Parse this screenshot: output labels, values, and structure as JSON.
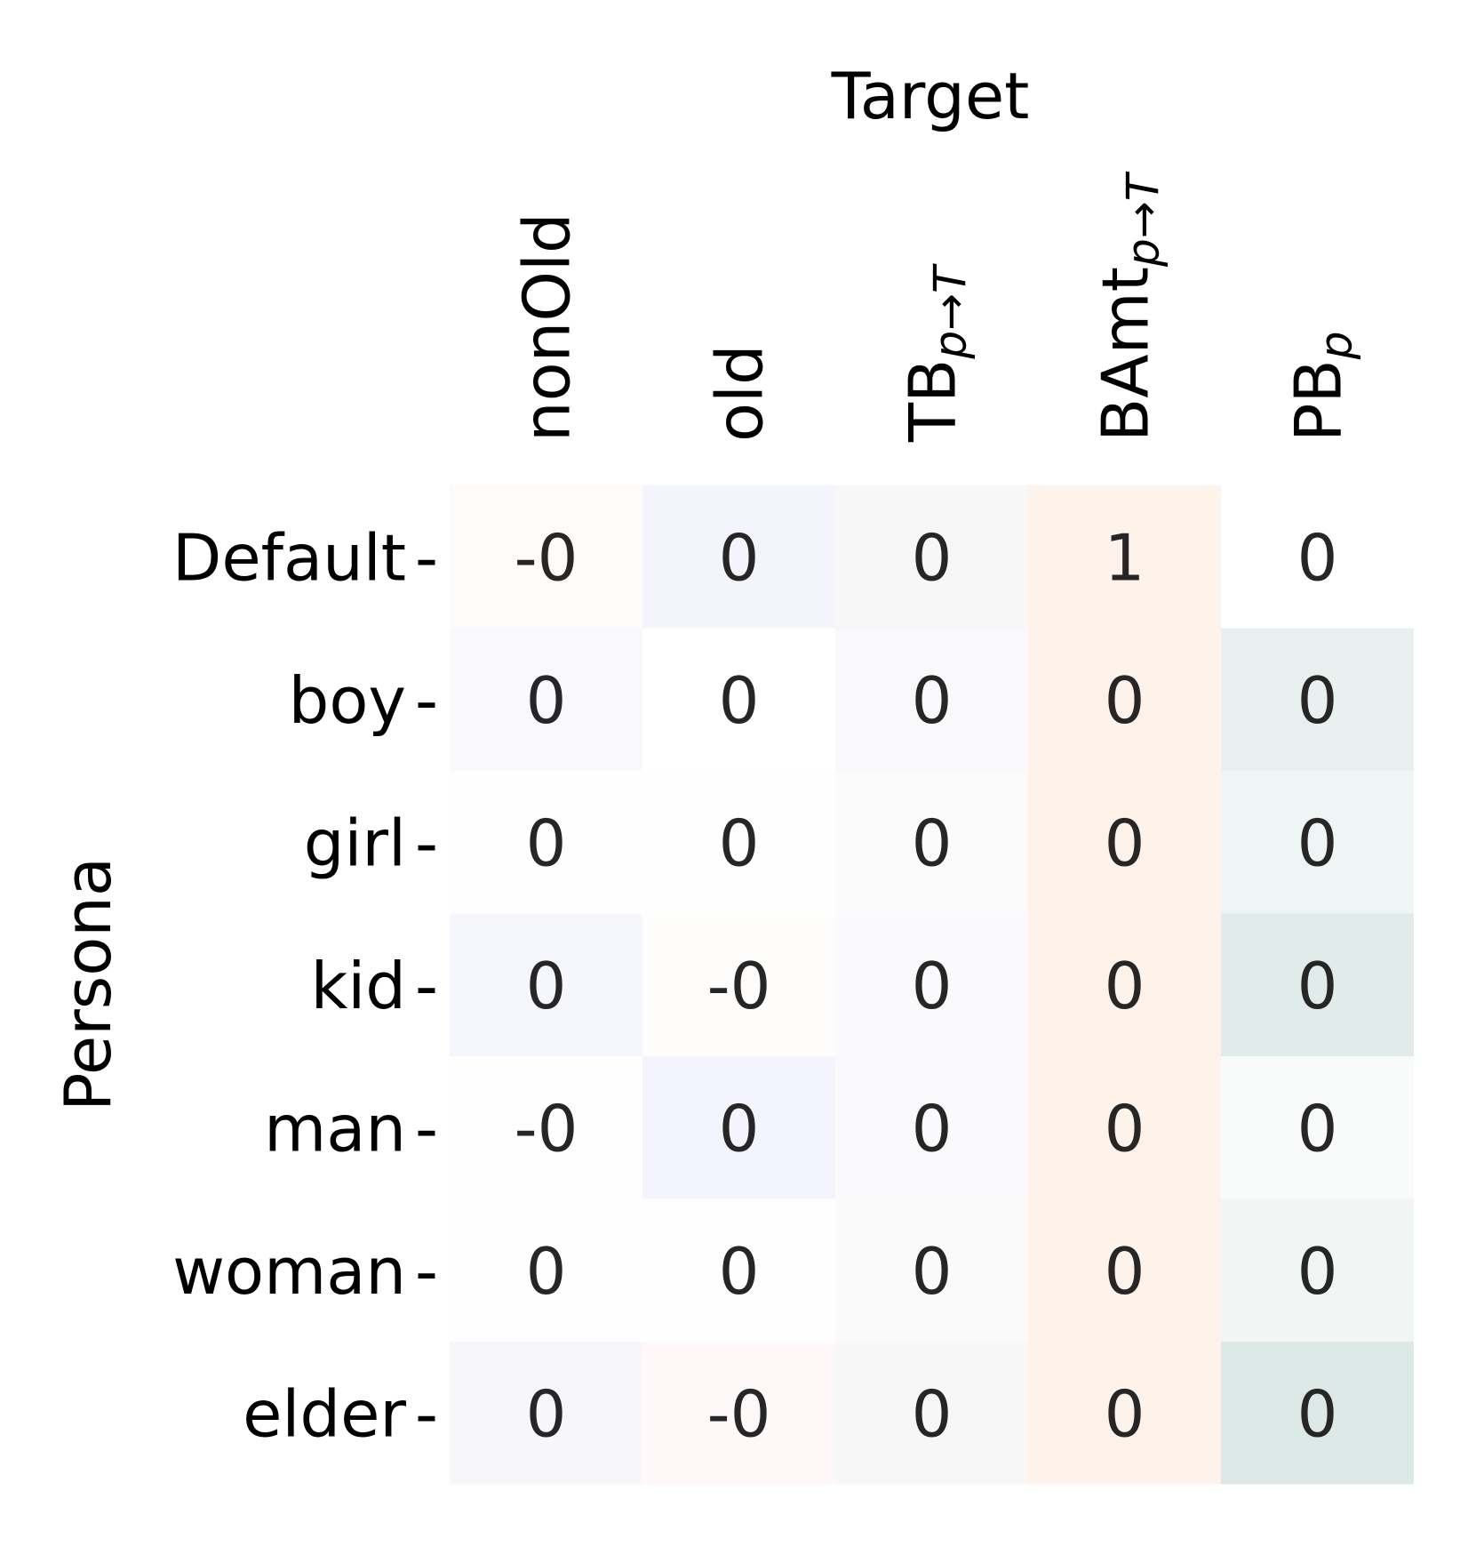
{
  "chart_data": {
    "type": "heatmap",
    "top_axis_label": "Target",
    "ylabel": "Persona",
    "columns": [
      {
        "base": "nonOld",
        "sub": ""
      },
      {
        "base": "old",
        "sub": ""
      },
      {
        "base": "TB",
        "sub": "p→T"
      },
      {
        "base": "BAmt",
        "sub": "p→T"
      },
      {
        "base": "PB",
        "sub": "p"
      }
    ],
    "rows": [
      "Default",
      "boy",
      "girl",
      "kid",
      "man",
      "woman",
      "elder"
    ],
    "tick_mark": "-",
    "cell_labels": [
      [
        "-0",
        "0",
        "0",
        "1",
        "0"
      ],
      [
        "0",
        "0",
        "0",
        "0",
        "0"
      ],
      [
        "0",
        "0",
        "0",
        "0",
        "0"
      ],
      [
        "0",
        "-0",
        "0",
        "0",
        "0"
      ],
      [
        "-0",
        "0",
        "0",
        "0",
        "0"
      ],
      [
        "0",
        "0",
        "0",
        "0",
        "0"
      ],
      [
        "0",
        "-0",
        "0",
        "0",
        "0"
      ]
    ],
    "cell_colors": [
      [
        "#fffbf9",
        "#f4f4fd",
        "#f7f7f8",
        "#fdf3ea",
        "#ffffff"
      ],
      [
        "#f8f8fd",
        "#ffffff",
        "#f9f9fb",
        "#fdf3ea",
        "#e8f1ef"
      ],
      [
        "#fefefe",
        "#fefefe",
        "#fbfbfc",
        "#fdf3ea",
        "#eff5f4"
      ],
      [
        "#f6f6fd",
        "#fefdfc",
        "#faf9fb",
        "#fdf3ea",
        "#e0ebea"
      ],
      [
        "#fefefe",
        "#f3f4fd",
        "#faf9fb",
        "#fdf3ea",
        "#f9fbfa"
      ],
      [
        "#fefefe",
        "#fefefe",
        "#fafafb",
        "#fdf3ea",
        "#f1f6f5"
      ],
      [
        "#f6f6fb",
        "#fff8f8",
        "#f7f7f8",
        "#fdf3ea",
        "#dde9e7"
      ]
    ]
  }
}
